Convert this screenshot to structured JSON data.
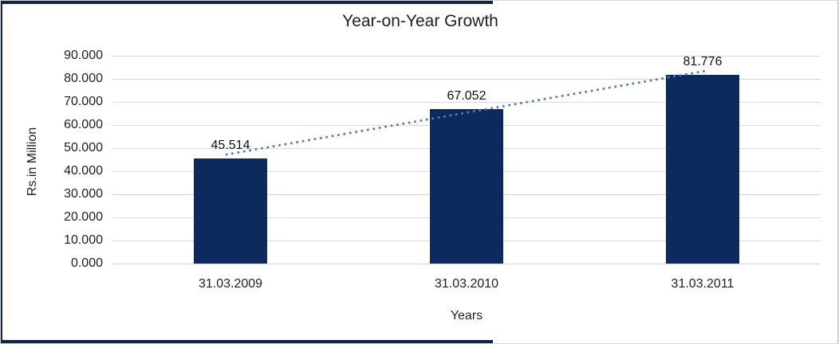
{
  "chart_data": {
    "type": "bar",
    "title": "Year-on-Year Growth",
    "xlabel": "Years",
    "ylabel": "Rs.in Million",
    "categories": [
      "31.03.2009",
      "31.03.2010",
      "31.03.2011"
    ],
    "values": [
      45.514,
      67.052,
      81.776
    ],
    "data_labels": [
      "45.514",
      "67.052",
      "81.776"
    ],
    "ytick_labels": [
      "0.000",
      "10.000",
      "20.000",
      "30.000",
      "40.000",
      "50.000",
      "60.000",
      "70.000",
      "80.000",
      "90.000"
    ],
    "ylim": [
      0,
      90
    ],
    "ytick_step": 10,
    "grid": true,
    "legend": "none",
    "trendline": {
      "type": "linear",
      "style": "dotted"
    }
  },
  "colors": {
    "bar": "#0d2a5f",
    "trendline": "#4a7ec0",
    "frame_navy": "#0e2350",
    "gridline": "#d9d9d9",
    "frame_gray": "#d2d2d2",
    "text": "#1f1f1f",
    "background": "#ffffff"
  }
}
